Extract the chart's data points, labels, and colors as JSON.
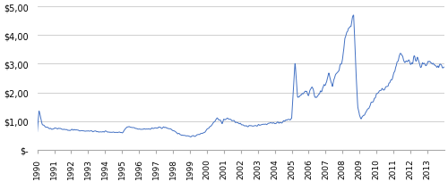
{
  "line_color": "#4472C4",
  "line_width": 0.7,
  "background_color": "#ffffff",
  "grid_color": "#c8c8c8",
  "ylim": [
    0,
    5.0
  ],
  "yticks": [
    0,
    1.0,
    2.0,
    3.0,
    4.0,
    5.0
  ],
  "ytick_labels": [
    "$-",
    "$1,00",
    "$2,00",
    "$3,00",
    "$4,00",
    "$5,00"
  ],
  "xtick_labels": [
    "1990",
    "1991",
    "1992",
    "1993",
    "1994",
    "1995",
    "1996",
    "1997",
    "1998",
    "1999",
    "2000",
    "2001",
    "2002",
    "2003",
    "2004",
    "2005",
    "2006",
    "2007",
    "2008",
    "2009",
    "2010",
    "2011",
    "2012",
    "2013"
  ],
  "xlim_start": 1990.0,
  "xlim_end": 2014.0,
  "seed": 42,
  "annual_means": [
    0.62,
    0.9,
    0.72,
    0.68,
    0.65,
    0.68,
    0.72,
    0.75,
    0.6,
    0.5,
    0.85,
    1.05,
    0.9,
    0.88,
    0.9,
    1.3,
    2.0,
    2.2,
    3.2,
    1.2,
    1.8,
    3.0,
    2.95,
    2.85
  ],
  "annual_std": [
    0.15,
    0.1,
    0.05,
    0.04,
    0.04,
    0.05,
    0.05,
    0.06,
    0.06,
    0.06,
    0.1,
    0.1,
    0.08,
    0.06,
    0.08,
    0.2,
    0.25,
    0.4,
    0.6,
    0.15,
    0.2,
    0.12,
    0.12,
    0.1
  ],
  "annual_peak_idx": [
    5,
    -1,
    -1,
    -1,
    -1,
    -1,
    -1,
    -1,
    -1,
    -1,
    -1,
    -1,
    -1,
    -1,
    -1,
    3,
    -1,
    -1,
    9,
    -1,
    -1,
    -1,
    -1,
    -1
  ],
  "annual_peak_val": [
    1.35,
    0,
    0,
    0,
    0,
    0,
    0,
    0,
    0,
    0,
    0,
    0,
    0,
    0,
    0,
    3.1,
    0,
    0,
    4.8,
    0,
    0,
    0,
    0,
    0
  ]
}
